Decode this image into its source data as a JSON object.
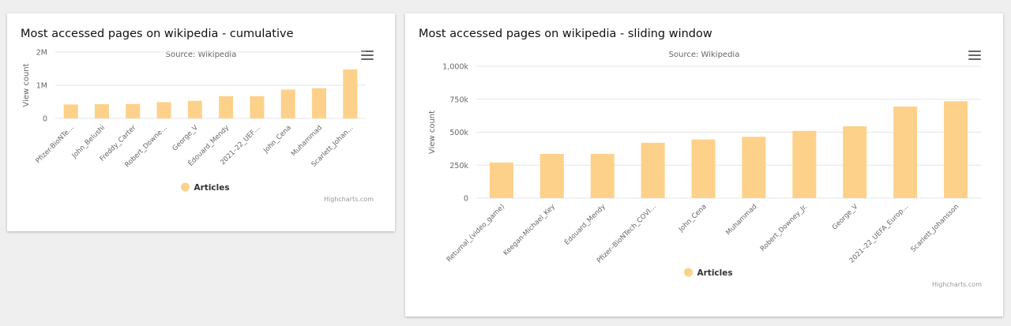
{
  "colors": {
    "bar": "#fdd18a",
    "grid": "#e6e6e6",
    "axis_text": "#666666",
    "title": "#111111"
  },
  "chart_data": [
    {
      "type": "bar",
      "title": "Most accessed pages on wikipedia - cumulative",
      "subtitle": "Source: Wikipedia",
      "xlabel": "",
      "ylabel": "View count",
      "ylim": [
        0,
        2000000
      ],
      "ytick_values": [
        0,
        1000000,
        2000000
      ],
      "ytick_labels": [
        "0",
        "1M",
        "2M"
      ],
      "categories": [
        "Pfizer-BioNTe…",
        "John_Belushi",
        "Freddy_Carter",
        "Robert_Downe…",
        "George_V",
        "Édouard_Mendy",
        "2021–22_UEF…",
        "John_Cena",
        "Muhammad",
        "Scarlett_Johan…"
      ],
      "series": [
        {
          "name": "Articles",
          "values": [
            420000,
            430000,
            435000,
            490000,
            530000,
            670000,
            670000,
            870000,
            910000,
            1480000
          ]
        }
      ],
      "legend": "bottom-center",
      "credits": "Highcharts.com",
      "grid": true
    },
    {
      "type": "bar",
      "title": "Most accessed pages on wikipedia - sliding window",
      "subtitle": "Source: Wikipedia",
      "xlabel": "",
      "ylabel": "View count",
      "ylim": [
        0,
        1000000
      ],
      "ytick_values": [
        0,
        250000,
        500000,
        750000,
        1000000
      ],
      "ytick_labels": [
        "0",
        "250k",
        "500k",
        "750k",
        "1,000k"
      ],
      "categories": [
        "Returnal_(video_game)",
        "Keegan-Michael_Key",
        "Édouard_Mendy",
        "Pfizer–BioNTech_COVI…",
        "John_Cena",
        "Muhammad",
        "Robert_Downey_Jr.",
        "George_V",
        "2021–22_UEFA_Europ…",
        "Scarlett_Johansson"
      ],
      "series": [
        {
          "name": "Articles",
          "values": [
            270000,
            335000,
            335000,
            420000,
            445000,
            465000,
            510000,
            545000,
            695000,
            735000
          ]
        }
      ],
      "legend": "bottom-center",
      "credits": "Highcharts.com",
      "grid": true
    }
  ]
}
